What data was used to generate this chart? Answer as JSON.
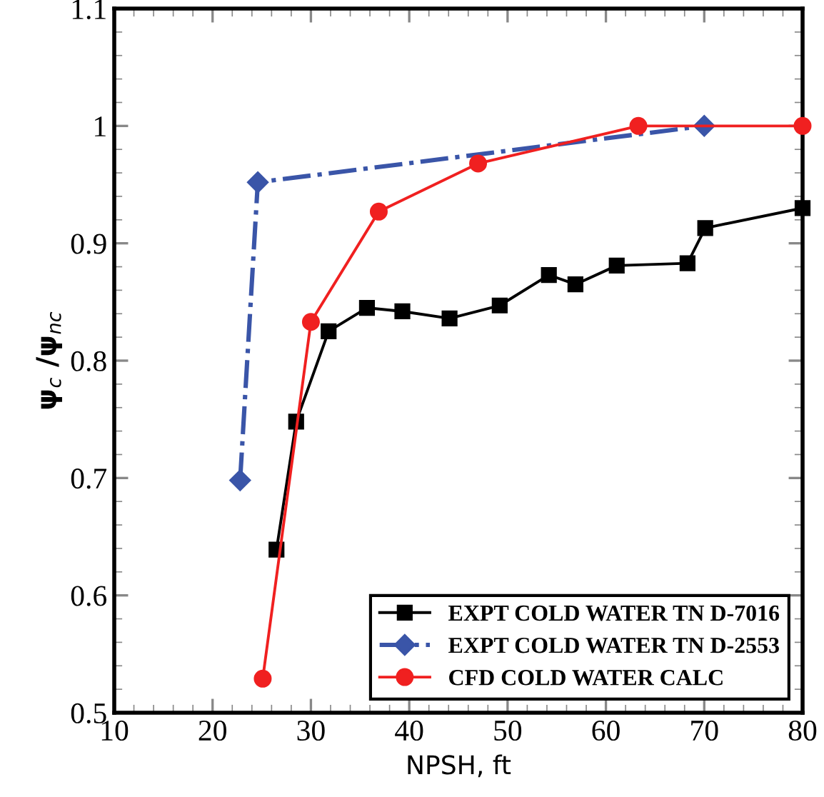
{
  "chart_data": {
    "type": "line",
    "xlabel": "NPSH, ft",
    "ylabel": "ψ$_{c}$ /ψ$_{nc}$",
    "xlim": [
      10,
      80
    ],
    "xticks": [
      10,
      20,
      30,
      40,
      50,
      60,
      70,
      80
    ],
    "ylim": [
      0.5,
      1.1
    ],
    "yticks": [
      0.5,
      0.6,
      0.7,
      0.8,
      0.9,
      {
        "value": 1.0,
        "label": "1"
      },
      1.1
    ],
    "grid": false,
    "legend": "bottom right",
    "series": [
      {
        "name": "EXPT COLD WATER TN D-7016",
        "color": "#000000",
        "marker": "square",
        "line_style": "solid",
        "x": [
          26.5,
          28.5,
          31.8,
          35.7,
          39.3,
          44.1,
          49.2,
          54.2,
          56.9,
          61.1,
          68.3,
          70.1,
          80
        ],
        "values": [
          0.639,
          0.748,
          0.825,
          0.845,
          0.842,
          0.836,
          0.847,
          0.873,
          0.865,
          0.881,
          0.883,
          0.913,
          0.93
        ]
      },
      {
        "name": "EXPT COLD WATER TN D-2553",
        "color": "#3a55a8",
        "marker": "diamond",
        "line_style": "dashdot",
        "x": [
          22.8,
          24.6,
          70.0
        ],
        "values": [
          0.698,
          0.952,
          1.0
        ]
      },
      {
        "name": "CFD COLD WATER CALC",
        "color": "#f02020",
        "marker": "circle",
        "line_style": "solid",
        "x": [
          25.1,
          30.0,
          36.9,
          47.0,
          63.3,
          80
        ],
        "values": [
          0.529,
          0.833,
          0.927,
          0.968,
          1.0,
          1.0
        ]
      }
    ]
  }
}
